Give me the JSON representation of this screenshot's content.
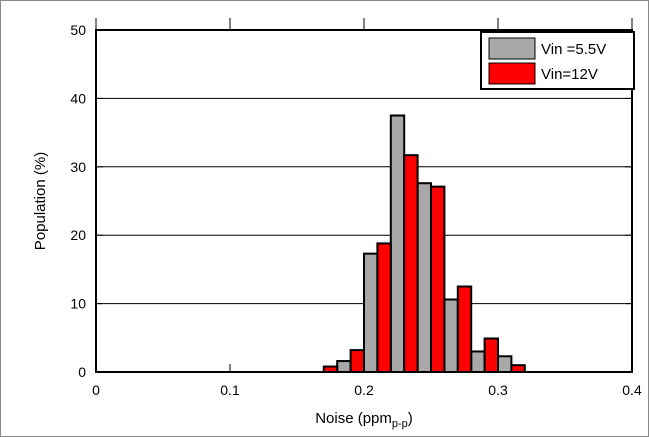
{
  "chart_data": {
    "type": "bar",
    "title": "",
    "xlabel": "Noise (ppm",
    "xlabel_sub": "p-p",
    "xlabel_suffix": ")",
    "ylabel": "Population (%)",
    "xlim": [
      0,
      0.4
    ],
    "ylim": [
      0,
      50
    ],
    "xticks": [
      "0",
      "0.1",
      "0.2",
      "0.3",
      "0.4"
    ],
    "yticks": [
      "0",
      "10",
      "20",
      "30",
      "40",
      "50"
    ],
    "grid": "horizontal",
    "legend_position": "top-right",
    "bin_width": 0.01,
    "series": [
      {
        "name": "Vin =5.5V",
        "color": "#A8A8A8",
        "x": [
          0.185,
          0.205,
          0.225,
          0.245,
          0.265,
          0.285,
          0.305
        ],
        "values": [
          1.6,
          17.3,
          37.5,
          27.6,
          10.6,
          3.0,
          2.3
        ]
      },
      {
        "name": "Vin=12V",
        "color": "#FF0000",
        "x": [
          0.175,
          0.195,
          0.215,
          0.235,
          0.255,
          0.275,
          0.295,
          0.315
        ],
        "values": [
          0.8,
          3.2,
          18.8,
          31.7,
          27.1,
          12.5,
          4.9,
          1.0
        ]
      }
    ]
  }
}
